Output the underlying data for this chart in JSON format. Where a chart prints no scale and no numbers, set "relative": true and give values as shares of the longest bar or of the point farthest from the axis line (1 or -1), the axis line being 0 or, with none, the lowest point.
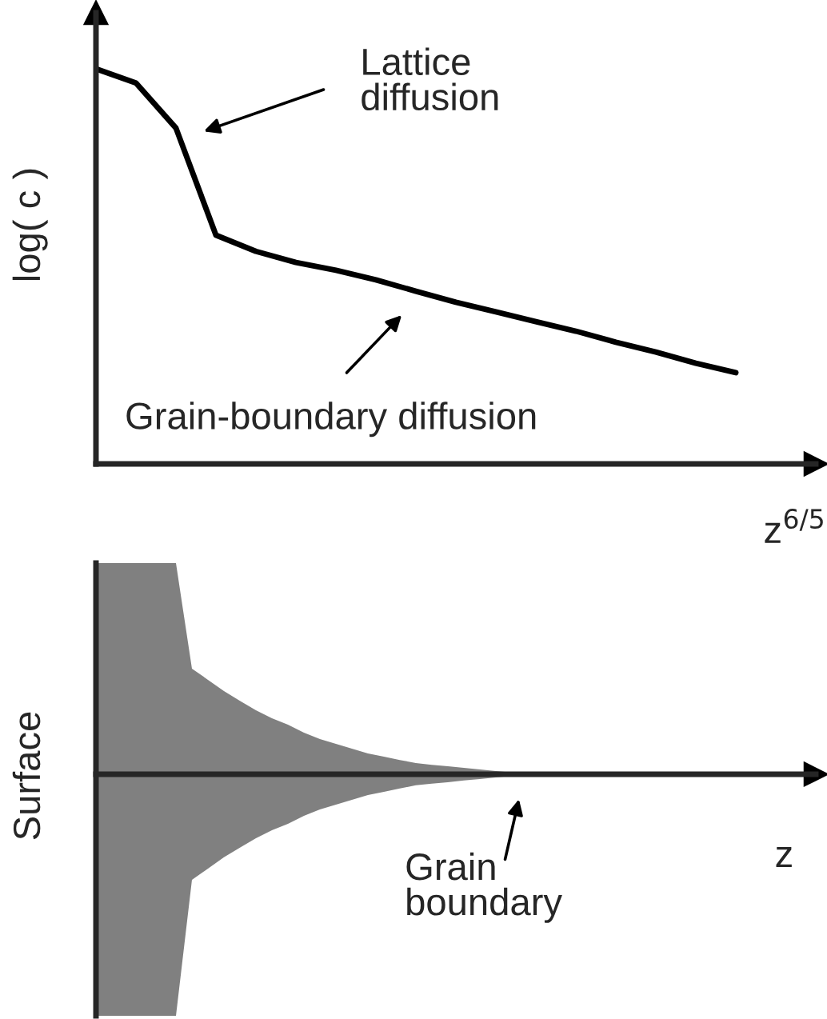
{
  "chart_data": [
    {
      "type": "line",
      "relative": true,
      "categories": [
        null,
        null,
        null,
        null,
        null,
        null,
        null,
        null,
        null,
        null,
        null,
        null,
        null,
        null,
        null,
        null,
        null
      ],
      "values": [
        1,
        0.964,
        0.85,
        0.579,
        0.538,
        0.51,
        0.49,
        0.466,
        0.437,
        0.409,
        0.385,
        0.36,
        0.336,
        0.308,
        0.283,
        0.255,
        0.231
      ],
      "color": "#000000",
      "xlabel": "z$^{6/5}$",
      "ylabel": "log( c )",
      "annotations": [
        "Lattice\ndiffusion",
        "Grain-boundary diffusion"
      ]
    },
    {
      "type": "area",
      "relative": true,
      "categories": [
        null,
        null,
        null,
        null,
        null,
        null,
        null,
        null,
        null,
        null,
        null,
        null,
        null,
        null,
        null,
        null,
        null,
        null,
        null,
        null,
        null,
        null,
        null,
        null,
        null,
        null,
        null,
        null,
        null
      ],
      "series": [
        {
          "color": "#808080",
          "values": [
            0.874,
            0.874,
            0.874,
            0.874,
            0.874,
            0.874,
            0.437,
            0.391,
            0.344,
            0.304,
            0.265,
            0.232,
            0.205,
            0.172,
            0.146,
            0.126,
            0.106,
            0.086,
            0.073,
            0.059,
            0.046,
            0.039,
            0.033,
            0.026,
            0.02,
            0.013,
            0.007,
            0.003,
            0
          ]
        },
        {
          "color": "#808080",
          "values": [
            -1,
            -1,
            -1,
            -1,
            -1,
            -1,
            -0.437,
            -0.391,
            -0.344,
            -0.304,
            -0.265,
            -0.232,
            -0.205,
            -0.172,
            -0.146,
            -0.126,
            -0.106,
            -0.086,
            -0.073,
            -0.059,
            -0.046,
            -0.039,
            -0.033,
            -0.026,
            -0.02,
            -0.013,
            -0.007,
            -0.003,
            0
          ]
        }
      ],
      "xlabel": "z",
      "ylabel": "Surface",
      "annotations": [
        "Grain\nboundary"
      ]
    }
  ]
}
